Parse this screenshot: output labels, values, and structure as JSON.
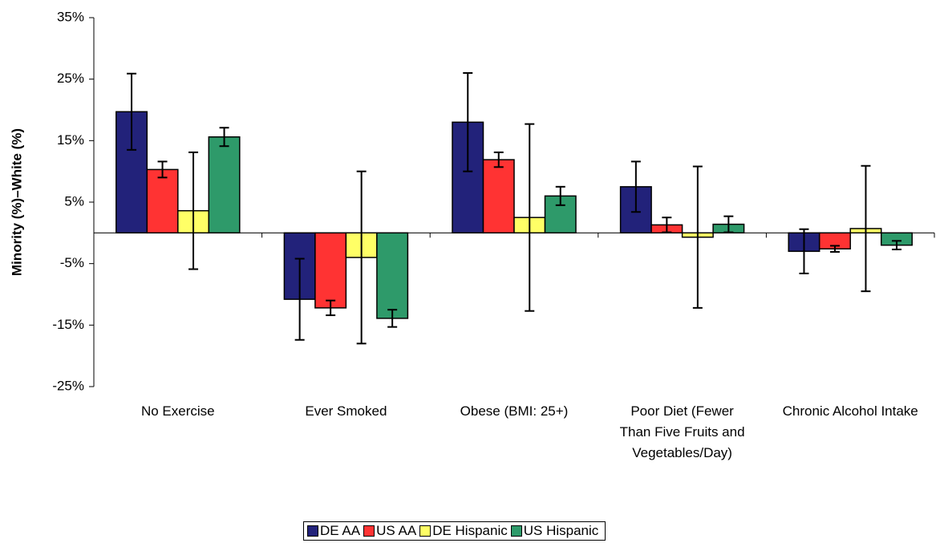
{
  "chart_data": {
    "type": "bar",
    "y_label": "Minority (%)–White (%)",
    "categories": [
      "No Exercise",
      "Ever Smoked",
      "Obese (BMI: 25+)",
      "Poor Diet (Fewer Than Five Fruits and Vegetables/Day)",
      "Chronic Alcohol Intake"
    ],
    "series": [
      {
        "name": "DE AA",
        "color": "#22227a",
        "values": [
          19.7,
          -10.8,
          18.0,
          7.5,
          -3.0
        ],
        "errors": [
          6.2,
          6.6,
          8.0,
          4.1,
          3.6
        ]
      },
      {
        "name": "US AA",
        "color": "#ff3333",
        "values": [
          10.3,
          -12.2,
          11.9,
          1.3,
          -2.6
        ],
        "errors": [
          1.3,
          1.2,
          1.2,
          1.2,
          0.5
        ]
      },
      {
        "name": "DE Hispanic",
        "color": "#ffff66",
        "values": [
          3.6,
          -4.0,
          2.5,
          -0.7,
          0.7
        ],
        "errors": [
          9.5,
          14.0,
          15.2,
          11.5,
          10.2
        ]
      },
      {
        "name": "US Hispanic",
        "color": "#2e9a6a",
        "values": [
          15.6,
          -13.9,
          6.0,
          1.4,
          -2.0
        ],
        "errors": [
          1.5,
          1.4,
          1.5,
          1.3,
          0.7
        ]
      }
    ],
    "ylim": [
      -25,
      35
    ],
    "yticks": [
      {
        "value": -25,
        "label": "-25%"
      },
      {
        "value": -15,
        "label": "-15%"
      },
      {
        "value": -5,
        "label": "-5%"
      },
      {
        "value": 5,
        "label": "5%"
      },
      {
        "value": 15,
        "label": "15%"
      },
      {
        "value": 25,
        "label": "25%"
      },
      {
        "value": 35,
        "label": "35%"
      }
    ],
    "grid": false,
    "legend": "bottom"
  }
}
